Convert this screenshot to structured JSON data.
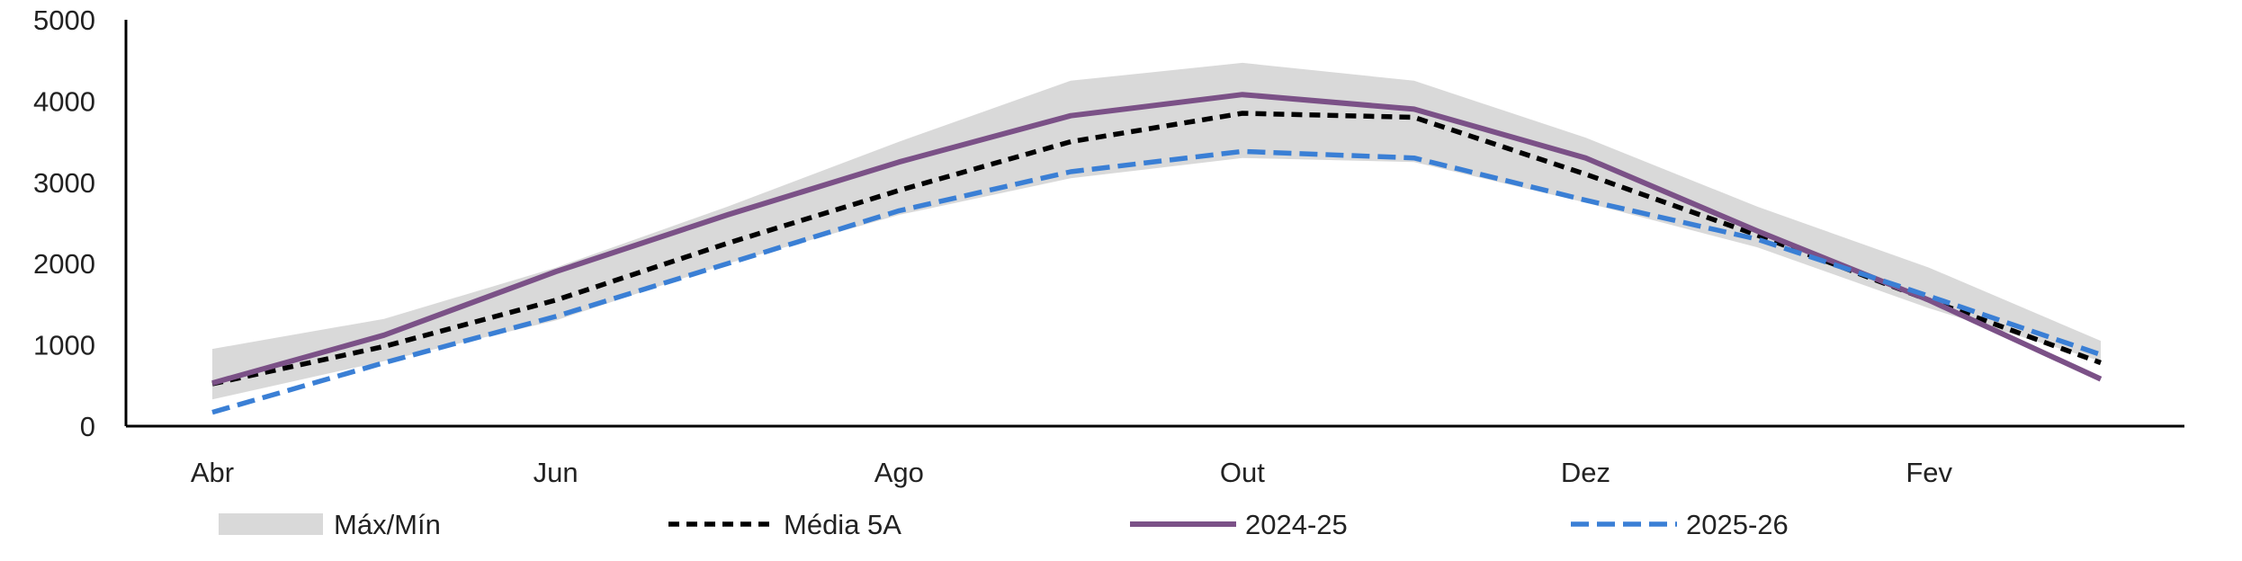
{
  "chart_data": {
    "type": "line",
    "title": "",
    "xlabel": "",
    "ylabel": "",
    "ylim": [
      0,
      5000
    ],
    "yticks": [
      0,
      1000,
      2000,
      3000,
      4000,
      5000
    ],
    "x": [
      "Abr",
      "Mai",
      "Jun",
      "Jul",
      "Ago",
      "Set",
      "Out",
      "Nov",
      "Dez",
      "Jan",
      "Fev",
      "Mar"
    ],
    "x_tick_labels": [
      "Abr",
      "Jun",
      "Ago",
      "Out",
      "Dez",
      "Fev"
    ],
    "grid": false,
    "legend_position": "bottom",
    "band": {
      "name": "Máx/Mín",
      "color": "#d9d9d9",
      "max": [
        950,
        1320,
        1950,
        2700,
        3500,
        4250,
        4470,
        4250,
        3550,
        2700,
        1950,
        1050
      ],
      "min": [
        330,
        800,
        1300,
        2000,
        2600,
        3050,
        3300,
        3250,
        2750,
        2200,
        1450,
        800
      ]
    },
    "series": [
      {
        "name": "Média 5A",
        "color": "#000000",
        "style": "dashed",
        "values": [
          520,
          980,
          1550,
          2250,
          2900,
          3500,
          3850,
          3800,
          3100,
          2350,
          1550,
          780
        ]
      },
      {
        "name": "2024-25",
        "color": "#7b5187",
        "style": "solid",
        "values": [
          530,
          1120,
          1900,
          2600,
          3250,
          3820,
          4080,
          3900,
          3300,
          2400,
          1550,
          580
        ]
      },
      {
        "name": "2025-26",
        "color": "#3a7fd5",
        "style": "dashed",
        "values": [
          170,
          780,
          1350,
          2000,
          2650,
          3130,
          3380,
          3300,
          2780,
          2300,
          1600,
          880
        ]
      }
    ]
  }
}
